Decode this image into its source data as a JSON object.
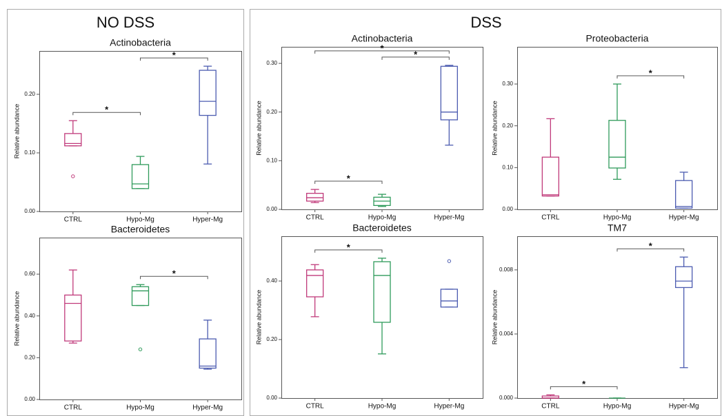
{
  "panels": [
    "NO DSS",
    "DSS"
  ],
  "chart_data": [
    {
      "type": "box",
      "title": "Actinobacteria",
      "ylabel": "Relative abundance",
      "categories": [
        "CTRL",
        "Hypo-Mg",
        "Hyper-Mg"
      ],
      "colors": [
        "#c0397a",
        "#2e9a5a",
        "#4b5bb0"
      ],
      "ylim": [
        0,
        0.274
      ],
      "yticks": [
        {
          "value": 0,
          "label": "0.00"
        },
        {
          "value": 0.1,
          "label": "0.10"
        },
        {
          "value": 0.2,
          "label": "0.20"
        }
      ],
      "boxes": [
        {
          "whisker_low": 0.112,
          "q1": 0.112,
          "median": 0.116,
          "q3": 0.133,
          "whisker_high": 0.155,
          "outliers": [
            0.06
          ]
        },
        {
          "whisker_low": 0.039,
          "q1": 0.039,
          "median": 0.047,
          "q3": 0.08,
          "whisker_high": 0.094,
          "outliers": []
        },
        {
          "whisker_low": 0.081,
          "q1": 0.164,
          "median": 0.188,
          "q3": 0.241,
          "whisker_high": 0.248,
          "outliers": []
        }
      ],
      "annotations": [
        {
          "from": 0,
          "to": 1,
          "label": "*"
        },
        {
          "from": 1,
          "to": 2,
          "label": "*"
        }
      ]
    },
    {
      "type": "box",
      "title": "Bacteroidetes",
      "ylabel": "Relative abundance",
      "categories": [
        "CTRL",
        "Hypo-Mg",
        "Hyper-Mg"
      ],
      "colors": [
        "#c0397a",
        "#2e9a5a",
        "#4b5bb0"
      ],
      "ylim": [
        0,
        0.775
      ],
      "yticks": [
        {
          "value": 0,
          "label": "0.00"
        },
        {
          "value": 0.2,
          "label": "0.20"
        },
        {
          "value": 0.4,
          "label": "0.40"
        },
        {
          "value": 0.6,
          "label": "0.60"
        }
      ],
      "boxes": [
        {
          "whisker_low": 0.27,
          "q1": 0.28,
          "median": 0.46,
          "q3": 0.5,
          "whisker_high": 0.62,
          "outliers": []
        },
        {
          "whisker_low": 0.45,
          "q1": 0.45,
          "median": 0.52,
          "q3": 0.54,
          "whisker_high": 0.55,
          "outliers": [
            0.24
          ]
        },
        {
          "whisker_low": 0.145,
          "q1": 0.15,
          "median": 0.16,
          "q3": 0.29,
          "whisker_high": 0.38,
          "outliers": []
        }
      ],
      "annotations": [
        {
          "from": 1,
          "to": 2,
          "label": "*"
        }
      ]
    },
    {
      "type": "box",
      "title": "Actinobacteria",
      "ylabel": "Relative abundance",
      "categories": [
        "CTRL",
        "Hypo-Mg",
        "Hyper-Mg"
      ],
      "colors": [
        "#c0397a",
        "#2e9a5a",
        "#4b5bb0"
      ],
      "ylim": [
        0,
        0.334
      ],
      "yticks": [
        {
          "value": 0,
          "label": "0.00"
        },
        {
          "value": 0.1,
          "label": "0.10"
        },
        {
          "value": 0.2,
          "label": "0.20"
        },
        {
          "value": 0.3,
          "label": "0.30"
        }
      ],
      "boxes": [
        {
          "whisker_low": 0.014,
          "q1": 0.017,
          "median": 0.024,
          "q3": 0.033,
          "whisker_high": 0.041,
          "outliers": []
        },
        {
          "whisker_low": 0.006,
          "q1": 0.008,
          "median": 0.017,
          "q3": 0.025,
          "whisker_high": 0.031,
          "outliers": []
        },
        {
          "whisker_low": 0.132,
          "q1": 0.184,
          "median": 0.2,
          "q3": 0.294,
          "whisker_high": 0.296,
          "outliers": []
        }
      ],
      "annotations": [
        {
          "from": 0,
          "to": 1,
          "label": "*"
        },
        {
          "from": 1,
          "to": 2,
          "label": "*"
        },
        {
          "from": 0,
          "to": 2,
          "label": "*"
        }
      ]
    },
    {
      "type": "box",
      "title": "Proteobacteria",
      "ylabel": "Relative abundance",
      "categories": [
        "CTRL",
        "Hypo-Mg",
        "Hyper-Mg"
      ],
      "colors": [
        "#c0397a",
        "#2e9a5a",
        "#4b5bb0"
      ],
      "ylim": [
        0,
        0.389
      ],
      "yticks": [
        {
          "value": 0,
          "label": "0.00"
        },
        {
          "value": 0.1,
          "label": "0.10"
        },
        {
          "value": 0.2,
          "label": "0.20"
        },
        {
          "value": 0.3,
          "label": "0.30"
        }
      ],
      "boxes": [
        {
          "whisker_low": 0.032,
          "q1": 0.032,
          "median": 0.035,
          "q3": 0.125,
          "whisker_high": 0.217,
          "outliers": []
        },
        {
          "whisker_low": 0.072,
          "q1": 0.099,
          "median": 0.125,
          "q3": 0.213,
          "whisker_high": 0.3,
          "outliers": []
        },
        {
          "whisker_low": 0.003,
          "q1": 0.003,
          "median": 0.007,
          "q3": 0.069,
          "whisker_high": 0.089,
          "outliers": []
        }
      ],
      "annotations": [
        {
          "from": 1,
          "to": 2,
          "label": "*"
        }
      ]
    },
    {
      "type": "box",
      "title": "Bacteroidetes",
      "ylabel": "Relative abundance",
      "categories": [
        "CTRL",
        "Hypo-Mg",
        "Hyper-Mg"
      ],
      "colors": [
        "#c0397a",
        "#2e9a5a",
        "#4b5bb0"
      ],
      "ylim": [
        0,
        0.553
      ],
      "yticks": [
        {
          "value": 0,
          "label": "0.00"
        },
        {
          "value": 0.2,
          "label": "0.20"
        },
        {
          "value": 0.4,
          "label": "0.40"
        }
      ],
      "boxes": [
        {
          "whisker_low": 0.278,
          "q1": 0.346,
          "median": 0.419,
          "q3": 0.438,
          "whisker_high": 0.456,
          "outliers": []
        },
        {
          "whisker_low": 0.151,
          "q1": 0.259,
          "median": 0.419,
          "q3": 0.466,
          "whisker_high": 0.478,
          "outliers": []
        },
        {
          "whisker_low": 0.311,
          "q1": 0.311,
          "median": 0.332,
          "q3": 0.372,
          "whisker_high": 0.372,
          "outliers": [
            0.468
          ]
        }
      ],
      "annotations": [
        {
          "from": 0,
          "to": 1,
          "label": "*"
        }
      ]
    },
    {
      "type": "box",
      "title": "TM7",
      "ylabel": "Relative abundance",
      "categories": [
        "CTRL",
        "Hypo-Mg",
        "Hyper-Mg"
      ],
      "colors": [
        "#c0397a",
        "#2e9a5a",
        "#4b5bb0"
      ],
      "ylim": [
        0,
        0.0101
      ],
      "yticks": [
        {
          "value": 0,
          "label": "0.000"
        },
        {
          "value": 0.004,
          "label": "0.004"
        },
        {
          "value": 0.008,
          "label": "0.008"
        }
      ],
      "boxes": [
        {
          "whisker_low": 0,
          "q1": 0,
          "median": 0,
          "q3": 0.00013,
          "whisker_high": 0.0002,
          "outliers": []
        },
        {
          "whisker_low": 0,
          "q1": 0,
          "median": 0,
          "q3": 0,
          "whisker_high": 0,
          "outliers": []
        },
        {
          "whisker_low": 0.0019,
          "q1": 0.0069,
          "median": 0.0073,
          "q3": 0.0082,
          "whisker_high": 0.0088,
          "outliers": []
        }
      ],
      "annotations": [
        {
          "from": 0,
          "to": 1,
          "label": "*"
        },
        {
          "from": 1,
          "to": 2,
          "label": "*"
        }
      ]
    }
  ]
}
